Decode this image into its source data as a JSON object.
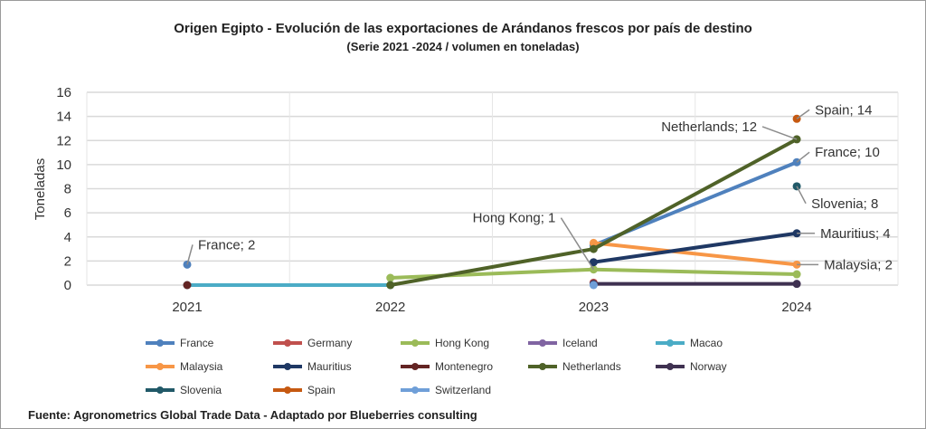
{
  "chart_data": {
    "type": "line",
    "title": "Origen Egipto - Evolución de las exportaciones de Arándanos frescos por país de destino",
    "subtitle": "(Serie 2021 -2024 / volumen en toneladas)",
    "xlabel": "",
    "ylabel": "Toneladas",
    "categories": [
      "2021",
      "2022",
      "2023",
      "2024"
    ],
    "ylim": [
      0,
      16
    ],
    "yticks": [
      "0",
      "2",
      "4",
      "6",
      "8",
      "10",
      "12",
      "14",
      "16"
    ],
    "grid": true,
    "legend_position": "bottom",
    "series": [
      {
        "name": "France",
        "color": "#4f81bd",
        "values": [
          1.7,
          null,
          3.3,
          10.2
        ]
      },
      {
        "name": "Germany",
        "color": "#c0504d",
        "values": [
          null,
          null,
          0.2,
          null
        ]
      },
      {
        "name": "Hong Kong",
        "color": "#9bbb59",
        "values": [
          null,
          0.6,
          1.3,
          0.9
        ]
      },
      {
        "name": "Iceland",
        "color": "#8064a2",
        "values": [
          null,
          null,
          null,
          null
        ]
      },
      {
        "name": "Macao",
        "color": "#4bacc6",
        "values": [
          0,
          0,
          null,
          null
        ]
      },
      {
        "name": "Malaysia",
        "color": "#f79646",
        "values": [
          null,
          null,
          3.5,
          1.7
        ]
      },
      {
        "name": "Mauritius",
        "color": "#1f3864",
        "values": [
          null,
          null,
          1.9,
          4.3
        ]
      },
      {
        "name": "Montenegro",
        "color": "#632423",
        "values": [
          0,
          null,
          null,
          null
        ]
      },
      {
        "name": "Netherlands",
        "color": "#4f6228",
        "values": [
          null,
          0,
          3.0,
          12.1
        ]
      },
      {
        "name": "Norway",
        "color": "#3f3151",
        "values": [
          null,
          null,
          0.1,
          0.1
        ]
      },
      {
        "name": "Slovenia",
        "color": "#215968",
        "values": [
          null,
          null,
          null,
          8.2
        ]
      },
      {
        "name": "Spain",
        "color": "#c65911",
        "values": [
          null,
          null,
          null,
          13.8
        ]
      },
      {
        "name": "Switzerland",
        "color": "#6f9fd8",
        "values": [
          null,
          null,
          0,
          null
        ]
      }
    ],
    "annotations": [
      {
        "text": "France; 2",
        "series": "France",
        "category": "2021"
      },
      {
        "text": "Hong Kong; 1",
        "series": "Hong Kong",
        "category": "2023"
      },
      {
        "text": "Netherlands; 12",
        "series": "Netherlands",
        "category": "2024"
      },
      {
        "text": "Spain; 14",
        "series": "Spain",
        "category": "2024"
      },
      {
        "text": "France; 10",
        "series": "France",
        "category": "2024"
      },
      {
        "text": "Slovenia; 8",
        "series": "Slovenia",
        "category": "2024"
      },
      {
        "text": "Mauritius; 4",
        "series": "Mauritius",
        "category": "2024"
      },
      {
        "text": "Malaysia; 2",
        "series": "Malaysia",
        "category": "2024"
      }
    ]
  },
  "source": "Fuente: Agronometrics Global Trade Data - Adaptado por Blueberries consulting"
}
